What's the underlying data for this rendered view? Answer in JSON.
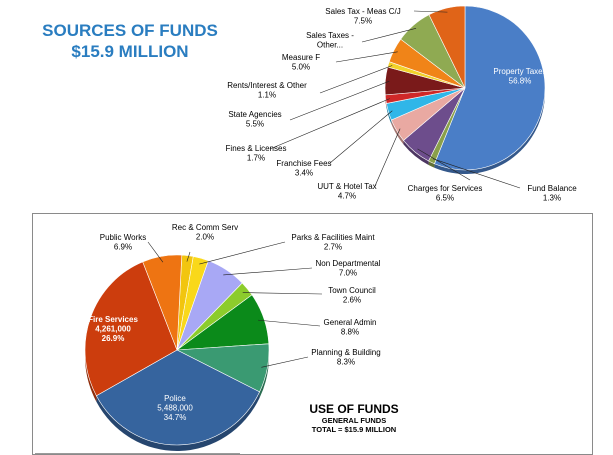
{
  "chart_data": [
    {
      "type": "pie",
      "title_line1": "SOURCES OF FUNDS",
      "title_line2": "$15.9 MILLION",
      "slices": [
        {
          "label": "Property Taxes",
          "value": 56.8,
          "value_text": "56.8%",
          "color": "#4a7ec7"
        },
        {
          "label": "Fund Balance",
          "value": 1.3,
          "value_text": "1.3%",
          "color": "#8aa04a"
        },
        {
          "label": "Charges for Services",
          "value": 6.5,
          "value_text": "6.5%",
          "color": "#6d4d8c"
        },
        {
          "label": "UUT & Hotel Tax",
          "value": 4.7,
          "value_text": "4.7%",
          "color": "#e9a9a2"
        },
        {
          "label": "Franchise Fees",
          "value": 3.4,
          "value_text": "3.4%",
          "color": "#30b6e8"
        },
        {
          "label": "Fines & Licenses",
          "value": 1.7,
          "value_text": "1.7%",
          "color": "#d02828"
        },
        {
          "label": "State Agencies",
          "value": 5.5,
          "value_text": "5.5%",
          "color": "#7a1a1a"
        },
        {
          "label": "Rents/Interest & Other",
          "value": 1.1,
          "value_text": "1.1%",
          "color": "#f2d22a"
        },
        {
          "label": "Measure F",
          "value": 5.0,
          "value_text": "5.0%",
          "color": "#f08418"
        },
        {
          "label": "Sales Taxes - Other...",
          "value": 7.5,
          "value_text": "",
          "color": "#8faa52"
        },
        {
          "label": "Sales Tax - Meas C/J",
          "value": 7.5,
          "value_text": "7.5%",
          "color": "#e06418"
        }
      ]
    },
    {
      "type": "pie",
      "title": "USE OF FUNDS",
      "subtitle_line1": "GENERAL FUNDS",
      "subtitle_line2": "TOTAL = $15.9 MILLION",
      "slices": [
        {
          "label": "Rec & Comm Serv",
          "value": 2.0,
          "value_text": "2.0%",
          "color": "#f2c50f"
        },
        {
          "label": "Parks & Facilities Maint",
          "value": 2.7,
          "value_text": "2.7%",
          "color": "#f9d81a"
        },
        {
          "label": "Non Departmental",
          "value": 7.0,
          "value_text": "7.0%",
          "color": "#a8a8f5"
        },
        {
          "label": "Town Council",
          "value": 2.6,
          "value_text": "2.6%",
          "color": "#8ccc2c"
        },
        {
          "label": "General Admin",
          "value": 8.8,
          "value_text": "8.8%",
          "color": "#0b8a1a"
        },
        {
          "label": "Planning & Building",
          "value": 8.3,
          "value_text": "8.3%",
          "color": "#3a9a72"
        },
        {
          "label": "Police",
          "value": 34.7,
          "amount": "5,488,000",
          "value_text": "34.7%",
          "color": "#36649e"
        },
        {
          "label": "Fire Services",
          "value": 26.9,
          "amount": "4,261,000",
          "value_text": "26.9%",
          "color": "#cc3d0d"
        },
        {
          "label": "Public Works",
          "value": 6.9,
          "value_text": "6.9%",
          "color": "#ee7412"
        }
      ]
    }
  ]
}
